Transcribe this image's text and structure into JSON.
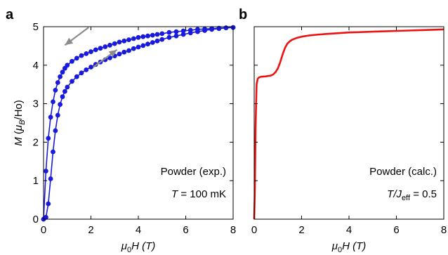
{
  "chart_data": [
    {
      "type": "line",
      "panel_label": "a",
      "xlabel": {
        "symbol": "μ",
        "sub": "0",
        "rest": "H (T)"
      },
      "ylabel": {
        "main": "M (",
        "mu": "μ",
        "sub": "B",
        "rest": "/Ho)"
      },
      "xlim": [
        0,
        8
      ],
      "ylim": [
        0,
        5
      ],
      "xticks": [
        0,
        2,
        4,
        6,
        8
      ],
      "yticks": [
        0,
        1,
        2,
        3,
        4,
        5
      ],
      "annotation_line1": "Powder (exp.)",
      "annotation_line2": {
        "sym": "T",
        "rest": " = 100 mK"
      },
      "color": "#1a1adc",
      "arrow_color": "#8c8c8c",
      "arrows": [
        {
          "direction": "left",
          "from": [
            1.9,
            4.98
          ],
          "to": [
            0.9,
            4.52
          ]
        },
        {
          "direction": "right",
          "from": [
            2.1,
            3.95
          ],
          "to": [
            3.1,
            4.4
          ]
        }
      ],
      "series": [
        {
          "x": [
            0,
            0.1,
            0.2,
            0.3,
            0.4,
            0.5,
            0.6,
            0.7,
            0.8,
            0.9,
            1.0,
            1.2,
            1.4,
            1.6,
            1.8,
            2.0,
            2.2,
            2.4,
            2.6,
            2.8,
            3.0,
            3.2,
            3.4,
            3.6,
            3.8,
            4.0,
            4.2,
            4.4,
            4.6,
            4.8,
            5.0,
            5.3,
            5.6,
            5.9,
            6.2,
            6.5,
            6.8,
            7.1,
            7.4,
            7.7,
            8.0
          ],
          "y": [
            0,
            1.25,
            2.1,
            2.65,
            3.05,
            3.35,
            3.55,
            3.7,
            3.82,
            3.92,
            4.0,
            4.1,
            4.18,
            4.25,
            4.3,
            4.35,
            4.4,
            4.44,
            4.48,
            4.52,
            4.56,
            4.6,
            4.63,
            4.66,
            4.69,
            4.72,
            4.74,
            4.76,
            4.78,
            4.8,
            4.82,
            4.85,
            4.87,
            4.89,
            4.91,
            4.93,
            4.94,
            4.95,
            4.96,
            4.97,
            4.98
          ]
        },
        {
          "x": [
            0,
            0.1,
            0.2,
            0.3,
            0.4,
            0.5,
            0.6,
            0.7,
            0.8,
            0.9,
            1.0,
            1.2,
            1.4,
            1.6,
            1.8,
            2.0,
            2.2,
            2.4,
            2.6,
            2.8,
            3.0,
            3.2,
            3.4,
            3.6,
            3.8,
            4.0,
            4.2,
            4.4,
            4.6,
            4.8,
            5.0,
            5.3,
            5.6,
            5.9,
            6.2,
            6.5,
            6.8,
            7.1,
            7.4,
            7.7,
            8.0
          ],
          "y": [
            0,
            0.05,
            0.4,
            1.05,
            1.75,
            2.3,
            2.7,
            2.98,
            3.18,
            3.32,
            3.43,
            3.58,
            3.7,
            3.8,
            3.88,
            3.95,
            4.02,
            4.08,
            4.14,
            4.19,
            4.24,
            4.29,
            4.34,
            4.38,
            4.43,
            4.47,
            4.51,
            4.55,
            4.59,
            4.63,
            4.67,
            4.72,
            4.76,
            4.8,
            4.84,
            4.87,
            4.9,
            4.93,
            4.95,
            4.97,
            4.98
          ]
        }
      ]
    },
    {
      "type": "line",
      "panel_label": "b",
      "xlabel": {
        "symbol": "μ",
        "sub": "0",
        "rest": "H (T)"
      },
      "xlim": [
        0,
        8
      ],
      "ylim": [
        0,
        5
      ],
      "xticks": [
        0,
        2,
        4,
        6,
        8
      ],
      "annotation_line1": "Powder (calc.)",
      "annotation_line2": {
        "sym": "T/J",
        "sub": "eff",
        "rest": " = 0.5"
      },
      "color": "#ee1111",
      "series": [
        {
          "x": [
            0,
            0.03,
            0.06,
            0.1,
            0.15,
            0.2,
            0.3,
            0.5,
            0.7,
            0.8,
            0.9,
            1.0,
            1.1,
            1.2,
            1.3,
            1.4,
            1.5,
            1.6,
            1.8,
            2.0,
            2.3,
            2.6,
            3.0,
            3.5,
            4.0,
            4.5,
            5.0,
            5.5,
            6.0,
            6.5,
            7.0,
            7.5,
            8.0
          ],
          "y": [
            0,
            0.8,
            2.4,
            3.5,
            3.65,
            3.68,
            3.7,
            3.71,
            3.73,
            3.76,
            3.82,
            3.92,
            4.08,
            4.28,
            4.45,
            4.56,
            4.62,
            4.66,
            4.71,
            4.74,
            4.77,
            4.79,
            4.81,
            4.83,
            4.85,
            4.86,
            4.87,
            4.88,
            4.89,
            4.9,
            4.91,
            4.92,
            4.93
          ]
        }
      ]
    }
  ]
}
